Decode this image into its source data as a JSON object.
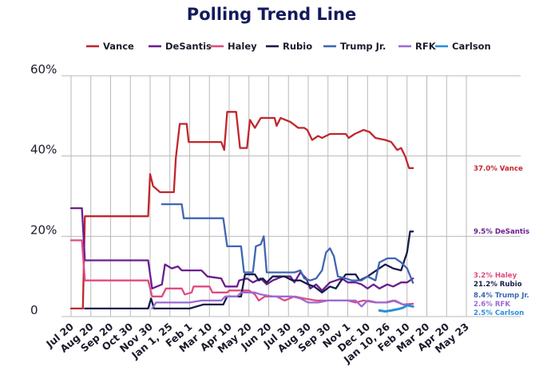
{
  "chart_data": {
    "type": "line",
    "title": "Polling Trend Line",
    "xlabel": "",
    "ylabel": "",
    "ylim": [
      0,
      60
    ],
    "yticks": [
      {
        "value": 0,
        "label": "0"
      },
      {
        "value": 20,
        "label": "20%"
      },
      {
        "value": 40,
        "label": "40%"
      },
      {
        "value": 60,
        "label": "60%"
      }
    ],
    "x_range": [
      0,
      20
    ],
    "categories": [
      "Jul 20",
      "Aug 20",
      "Sep 20",
      "Oct 30",
      "Nov 30",
      "Jan 1, 25",
      "Feb 1",
      "Mar 10",
      "Apr 10",
      "May 20",
      "Jun 20",
      "Jul 30",
      "Aug 30",
      "Sep 30",
      "Nov 1",
      "Dec 10",
      "Jan 10, 26",
      "Feb 10",
      "Mar 20",
      "Apr 20",
      "May 23"
    ],
    "grid": "vertical lines at each category, horizontal lines at y ticks",
    "legend_position": "top",
    "series": [
      {
        "name": "Vance",
        "color": "#c0262d",
        "end_label": "37.0% Vance",
        "points": [
          [
            0,
            2
          ],
          [
            0.6,
            2
          ],
          [
            0.7,
            25
          ],
          [
            3.9,
            25
          ],
          [
            4.0,
            35.5
          ],
          [
            4.15,
            32.5
          ],
          [
            4.5,
            31
          ],
          [
            5.2,
            31
          ],
          [
            5.3,
            39.5
          ],
          [
            5.5,
            48
          ],
          [
            5.85,
            48
          ],
          [
            5.95,
            43.5
          ],
          [
            7.6,
            43.5
          ],
          [
            7.75,
            41.5
          ],
          [
            7.9,
            51
          ],
          [
            8.35,
            51
          ],
          [
            8.55,
            42
          ],
          [
            8.9,
            42
          ],
          [
            9.05,
            49
          ],
          [
            9.3,
            47
          ],
          [
            9.6,
            49.5
          ],
          [
            10.3,
            49.5
          ],
          [
            10.4,
            47.5
          ],
          [
            10.6,
            49.5
          ],
          [
            11.1,
            48.5
          ],
          [
            11.5,
            47
          ],
          [
            11.8,
            47
          ],
          [
            11.95,
            46.5
          ],
          [
            12.2,
            44
          ],
          [
            12.5,
            45
          ],
          [
            12.7,
            44.5
          ],
          [
            13.1,
            45.5
          ],
          [
            13.9,
            45.5
          ],
          [
            14.05,
            44.5
          ],
          [
            14.35,
            45.5
          ],
          [
            14.8,
            46.5
          ],
          [
            15.1,
            46
          ],
          [
            15.4,
            44.5
          ],
          [
            15.9,
            44
          ],
          [
            16.2,
            43.5
          ],
          [
            16.5,
            41.5
          ],
          [
            16.7,
            42
          ],
          [
            16.9,
            40
          ],
          [
            17.1,
            37
          ],
          [
            17.3,
            37
          ]
        ]
      },
      {
        "name": "DeSantis",
        "color": "#6a1d8f",
        "end_label": "9.5% DeSantis",
        "points": [
          [
            0,
            27
          ],
          [
            0.55,
            27
          ],
          [
            0.7,
            14
          ],
          [
            3.9,
            14
          ],
          [
            4.1,
            7
          ],
          [
            4.6,
            8
          ],
          [
            4.75,
            13
          ],
          [
            5.1,
            12
          ],
          [
            5.4,
            12.5
          ],
          [
            5.6,
            11.5
          ],
          [
            6.6,
            11.5
          ],
          [
            6.9,
            10
          ],
          [
            7.6,
            9.5
          ],
          [
            7.8,
            7.5
          ],
          [
            8.4,
            7.5
          ],
          [
            8.5,
            9
          ],
          [
            8.9,
            9.5
          ],
          [
            9.2,
            8.5
          ],
          [
            9.6,
            9.5
          ],
          [
            9.9,
            8
          ],
          [
            10.2,
            9
          ],
          [
            10.7,
            10
          ],
          [
            11.1,
            10
          ],
          [
            11.3,
            8.5
          ],
          [
            11.6,
            11
          ],
          [
            11.9,
            9.5
          ],
          [
            12.1,
            7
          ],
          [
            12.4,
            8
          ],
          [
            12.7,
            6.5
          ],
          [
            13.1,
            8.5
          ],
          [
            13.4,
            9
          ],
          [
            13.7,
            9.5
          ],
          [
            14.0,
            8.5
          ],
          [
            14.4,
            8.5
          ],
          [
            14.7,
            8
          ],
          [
            15.0,
            7
          ],
          [
            15.3,
            8
          ],
          [
            15.6,
            7
          ],
          [
            16.0,
            8
          ],
          [
            16.3,
            7.5
          ],
          [
            16.7,
            8.5
          ],
          [
            17.0,
            8.5
          ],
          [
            17.3,
            9.5
          ]
        ]
      },
      {
        "name": "Haley",
        "color": "#e04a80",
        "end_label": "3.2% Haley",
        "points": [
          [
            0,
            19
          ],
          [
            0.55,
            19
          ],
          [
            0.7,
            9
          ],
          [
            3.9,
            9
          ],
          [
            4.1,
            5
          ],
          [
            4.6,
            5
          ],
          [
            4.8,
            7
          ],
          [
            5.6,
            7
          ],
          [
            5.75,
            5.5
          ],
          [
            6.1,
            6
          ],
          [
            6.2,
            7.5
          ],
          [
            7.0,
            7.5
          ],
          [
            7.15,
            6
          ],
          [
            7.9,
            6
          ],
          [
            8.0,
            6.5
          ],
          [
            9.0,
            6.5
          ],
          [
            9.3,
            5.5
          ],
          [
            9.5,
            4
          ],
          [
            9.8,
            5
          ],
          [
            10.4,
            5
          ],
          [
            10.8,
            4
          ],
          [
            11.3,
            5
          ],
          [
            11.8,
            4.5
          ],
          [
            12.4,
            4
          ],
          [
            12.9,
            4
          ],
          [
            13.4,
            4
          ],
          [
            14.0,
            4
          ],
          [
            14.4,
            3.5
          ],
          [
            14.8,
            4
          ],
          [
            15.4,
            3.5
          ],
          [
            15.9,
            3.5
          ],
          [
            16.3,
            4
          ],
          [
            16.8,
            3
          ],
          [
            17.3,
            3.2
          ]
        ]
      },
      {
        "name": "Rubio",
        "color": "#161c4a",
        "end_label": "21.2% Rubio",
        "points": [
          [
            0.7,
            2
          ],
          [
            3.9,
            2
          ],
          [
            4.05,
            4.5
          ],
          [
            4.2,
            2
          ],
          [
            4.6,
            2
          ],
          [
            5.3,
            2
          ],
          [
            6.0,
            2
          ],
          [
            6.7,
            3
          ],
          [
            7.7,
            3
          ],
          [
            7.9,
            5
          ],
          [
            8.6,
            5
          ],
          [
            8.8,
            10.5
          ],
          [
            9.3,
            10.5
          ],
          [
            9.5,
            9
          ],
          [
            9.7,
            9.5
          ],
          [
            9.9,
            8.5
          ],
          [
            10.2,
            10
          ],
          [
            10.8,
            10
          ],
          [
            11.2,
            9
          ],
          [
            11.6,
            9
          ],
          [
            12.0,
            8
          ],
          [
            12.3,
            7.5
          ],
          [
            12.7,
            6
          ],
          [
            13.1,
            7.5
          ],
          [
            13.4,
            7
          ],
          [
            13.6,
            8.5
          ],
          [
            13.9,
            10.5
          ],
          [
            14.4,
            10.5
          ],
          [
            14.6,
            9
          ],
          [
            15.0,
            10
          ],
          [
            15.3,
            11
          ],
          [
            15.6,
            12
          ],
          [
            15.9,
            13
          ],
          [
            16.3,
            12
          ],
          [
            16.7,
            11.5
          ],
          [
            17.0,
            16
          ],
          [
            17.15,
            21.2
          ],
          [
            17.3,
            21.2
          ]
        ]
      },
      {
        "name": "Trump Jr.",
        "color": "#3e66b3",
        "end_label": "8.4% Trump Jr.",
        "points": [
          [
            4.6,
            28
          ],
          [
            5.6,
            28
          ],
          [
            5.7,
            24.5
          ],
          [
            7.7,
            24.5
          ],
          [
            7.9,
            17.5
          ],
          [
            8.6,
            17.5
          ],
          [
            8.75,
            11
          ],
          [
            9.2,
            11
          ],
          [
            9.35,
            17.5
          ],
          [
            9.6,
            18
          ],
          [
            9.75,
            20
          ],
          [
            9.9,
            11
          ],
          [
            11.0,
            11
          ],
          [
            11.3,
            11
          ],
          [
            11.6,
            11.5
          ],
          [
            11.8,
            9.5
          ],
          [
            12.1,
            9
          ],
          [
            12.4,
            9.5
          ],
          [
            12.7,
            11.5
          ],
          [
            12.9,
            16
          ],
          [
            13.1,
            17
          ],
          [
            13.3,
            15
          ],
          [
            13.5,
            10
          ],
          [
            13.9,
            9.5
          ],
          [
            14.2,
            9
          ],
          [
            14.7,
            9
          ],
          [
            15.0,
            10
          ],
          [
            15.4,
            9
          ],
          [
            15.6,
            13.5
          ],
          [
            16.0,
            14.5
          ],
          [
            16.4,
            14.5
          ],
          [
            16.7,
            13.5
          ],
          [
            17.0,
            12
          ],
          [
            17.3,
            8.4
          ]
        ]
      },
      {
        "name": "RFK",
        "color": "#9a6bd4",
        "end_label": "2.6% RFK",
        "points": [
          [
            4.1,
            2
          ],
          [
            4.3,
            3.5
          ],
          [
            5.2,
            3.5
          ],
          [
            6.0,
            3.5
          ],
          [
            6.6,
            4
          ],
          [
            7.6,
            4
          ],
          [
            7.8,
            5
          ],
          [
            8.4,
            5
          ],
          [
            8.6,
            6
          ],
          [
            9.3,
            6
          ],
          [
            9.6,
            5.5
          ],
          [
            10.2,
            5
          ],
          [
            10.6,
            5
          ],
          [
            11.2,
            5
          ],
          [
            11.6,
            4.5
          ],
          [
            12.0,
            3.5
          ],
          [
            12.5,
            3.5
          ],
          [
            13.0,
            4
          ],
          [
            13.5,
            4
          ],
          [
            14.0,
            4
          ],
          [
            14.4,
            4
          ],
          [
            14.7,
            2.5
          ],
          [
            15.0,
            4
          ],
          [
            15.5,
            3.5
          ],
          [
            16.0,
            3.5
          ],
          [
            16.4,
            4
          ],
          [
            16.8,
            3
          ],
          [
            17.3,
            2.6
          ]
        ]
      },
      {
        "name": "Carlson",
        "color": "#2b8fd9",
        "end_label": "2.5% Carlson",
        "points": [
          [
            15.6,
            1.5
          ],
          [
            15.9,
            1.3
          ],
          [
            16.2,
            1.5
          ],
          [
            16.5,
            1.8
          ],
          [
            16.8,
            2.2
          ],
          [
            17.0,
            2.8
          ],
          [
            17.3,
            2.5
          ]
        ]
      }
    ]
  }
}
